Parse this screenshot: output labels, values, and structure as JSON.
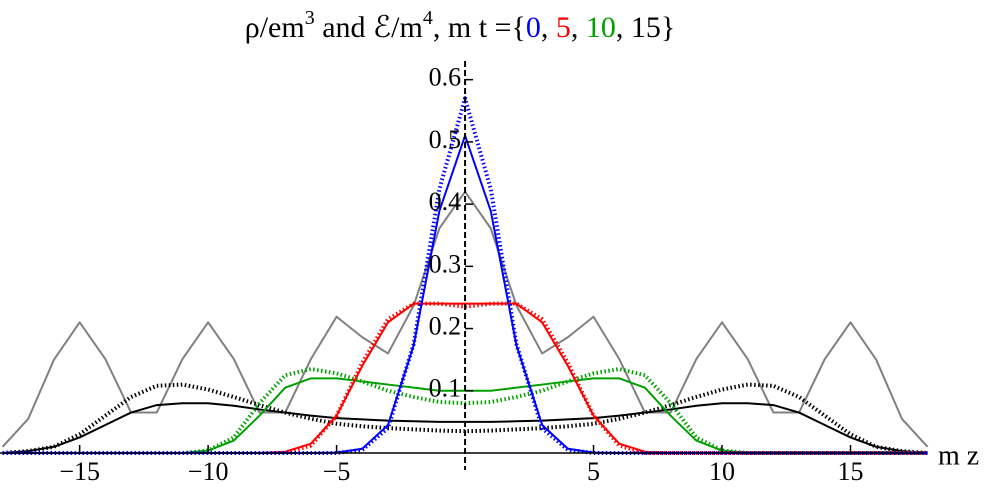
{
  "chart_data": {
    "type": "line",
    "title_parts": [
      {
        "text": "ρ/em",
        "color": "#000000"
      },
      {
        "text": "3",
        "color": "#000000",
        "sup": true
      },
      {
        "text": " and ℰ/m",
        "color": "#000000"
      },
      {
        "text": "4",
        "color": "#000000",
        "sup": true
      },
      {
        "text": ", m t ={",
        "color": "#000000"
      },
      {
        "text": "0",
        "color": "#0000ff"
      },
      {
        "text": ", ",
        "color": "#000000"
      },
      {
        "text": "5",
        "color": "#ff0000"
      },
      {
        "text": ", ",
        "color": "#000000"
      },
      {
        "text": "10",
        "color": "#00a000"
      },
      {
        "text": ", ",
        "color": "#000000"
      },
      {
        "text": "15",
        "color": "#000000"
      },
      {
        "text": "}",
        "color": "#000000"
      }
    ],
    "x_label": "m z",
    "xlim": [
      -18.1,
      17.9
    ],
    "ylim": [
      0,
      0.63
    ],
    "xticks": [
      {
        "value": -15,
        "label": "−15"
      },
      {
        "value": -10,
        "label": "−10"
      },
      {
        "value": -5,
        "label": "−5"
      },
      5,
      10,
      15
    ],
    "yticks": [
      0.1,
      0.2,
      0.3,
      0.4,
      0.5,
      0.6
    ],
    "x": [
      -18,
      -17,
      -16,
      -15,
      -14,
      -13,
      -12,
      -11,
      -10,
      -9,
      -8,
      -7,
      -6,
      -5,
      -4,
      -3,
      -2,
      -1,
      0,
      1,
      2,
      3,
      4,
      5,
      6,
      7,
      8,
      9,
      10,
      11,
      12,
      13,
      14,
      15,
      16,
      17,
      18
    ],
    "series": [
      {
        "color": "#808080",
        "dotted": false,
        "values": [
          0.01,
          0.055,
          0.15,
          0.21,
          0.151,
          0.065,
          0.065,
          0.151,
          0.21,
          0.151,
          0.065,
          0.065,
          0.151,
          0.219,
          0.186,
          0.16,
          0.237,
          0.361,
          0.42,
          0.361,
          0.237,
          0.16,
          0.186,
          0.219,
          0.151,
          0.065,
          0.065,
          0.151,
          0.21,
          0.151,
          0.065,
          0.065,
          0.151,
          0.21,
          0.15,
          0.055,
          0.01
        ]
      },
      {
        "color": "#000000",
        "dotted": true,
        "values": [
          0,
          0.003,
          0.01,
          0.03,
          0.06,
          0.09,
          0.108,
          0.11,
          0.102,
          0.09,
          0.077,
          0.065,
          0.055,
          0.047,
          0.043,
          0.04,
          0.038,
          0.036,
          0.035,
          0.036,
          0.038,
          0.04,
          0.043,
          0.047,
          0.055,
          0.065,
          0.077,
          0.09,
          0.102,
          0.11,
          0.108,
          0.09,
          0.06,
          0.03,
          0.01,
          0.003,
          0
        ]
      },
      {
        "color": "#000000",
        "dotted": false,
        "values": [
          0,
          0.003,
          0.01,
          0.025,
          0.045,
          0.065,
          0.077,
          0.08,
          0.08,
          0.076,
          0.07,
          0.065,
          0.06,
          0.056,
          0.054,
          0.052,
          0.051,
          0.05,
          0.05,
          0.05,
          0.051,
          0.052,
          0.054,
          0.056,
          0.06,
          0.065,
          0.07,
          0.076,
          0.08,
          0.08,
          0.077,
          0.065,
          0.045,
          0.025,
          0.01,
          0.003,
          0
        ]
      },
      {
        "color": "#00a000",
        "dotted": true,
        "values": [
          0,
          0,
          0,
          0,
          0,
          0,
          0,
          0,
          0.004,
          0.025,
          0.08,
          0.125,
          0.135,
          0.128,
          0.115,
          0.1,
          0.09,
          0.082,
          0.08,
          0.082,
          0.09,
          0.1,
          0.115,
          0.128,
          0.135,
          0.125,
          0.08,
          0.025,
          0.004,
          0,
          0,
          0,
          0,
          0,
          0,
          0,
          0
        ]
      },
      {
        "color": "#00a000",
        "dotted": false,
        "values": [
          0,
          0,
          0,
          0,
          0,
          0,
          0,
          0,
          0.004,
          0.02,
          0.06,
          0.105,
          0.12,
          0.12,
          0.115,
          0.11,
          0.105,
          0.1,
          0.1,
          0.1,
          0.105,
          0.11,
          0.115,
          0.12,
          0.12,
          0.105,
          0.06,
          0.02,
          0.004,
          0,
          0,
          0,
          0,
          0,
          0,
          0,
          0
        ]
      },
      {
        "color": "#ff0000",
        "dotted": true,
        "values": [
          0,
          0,
          0,
          0,
          0,
          0,
          0,
          0,
          0,
          0,
          0,
          0,
          0.012,
          0.06,
          0.145,
          0.215,
          0.24,
          0.24,
          0.235,
          0.24,
          0.24,
          0.215,
          0.145,
          0.06,
          0.012,
          0,
          0,
          0,
          0,
          0,
          0,
          0,
          0,
          0,
          0,
          0,
          0
        ]
      },
      {
        "color": "#ff0000",
        "dotted": false,
        "values": [
          0,
          0,
          0,
          0,
          0,
          0,
          0,
          0,
          0,
          0,
          0,
          0.002,
          0.015,
          0.06,
          0.14,
          0.21,
          0.24,
          0.24,
          0.24,
          0.24,
          0.24,
          0.21,
          0.14,
          0.06,
          0.015,
          0.002,
          0,
          0,
          0,
          0,
          0,
          0,
          0,
          0,
          0,
          0,
          0
        ]
      },
      {
        "color": "#0000ff",
        "dotted": true,
        "values": [
          0,
          0,
          0,
          0,
          0,
          0,
          0,
          0,
          0,
          0,
          0,
          0,
          0,
          0,
          0.005,
          0.04,
          0.175,
          0.424,
          0.57,
          0.424,
          0.175,
          0.04,
          0.005,
          0,
          0,
          0,
          0,
          0,
          0,
          0,
          0,
          0,
          0,
          0,
          0,
          0,
          0
        ]
      },
      {
        "color": "#0000ff",
        "dotted": false,
        "values": [
          0,
          0,
          0,
          0,
          0,
          0,
          0,
          0,
          0,
          0,
          0,
          0,
          0,
          0.0006,
          0.0068,
          0.045,
          0.173,
          0.389,
          0.51,
          0.389,
          0.173,
          0.045,
          0.0068,
          0.0006,
          0,
          0,
          0,
          0,
          0,
          0,
          0,
          0,
          0,
          0,
          0,
          0,
          0
        ]
      }
    ]
  }
}
